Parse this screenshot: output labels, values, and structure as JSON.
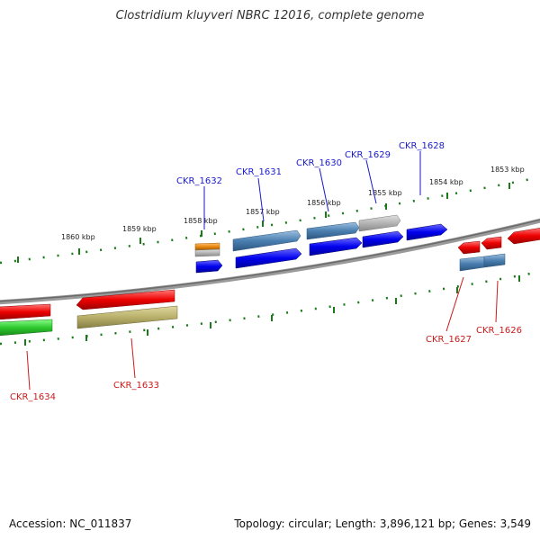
{
  "title": "Clostridium kluyveri NBRC 12016, complete genome",
  "footer": {
    "accession": "Accession: NC_011837",
    "summary": "Topology: circular; Length: 3,896,121 bp; Genes: 3,549"
  },
  "scale_labels": [
    "1853 kbp",
    "1854 kbp",
    "1855 kbp",
    "1856 kbp",
    "1857 kbp",
    "1858 kbp",
    "1859 kbp",
    "1860 kbp"
  ],
  "gene_labels_forward": [
    "CKR_1628",
    "CKR_1629",
    "CKR_1630",
    "CKR_1631",
    "CKR_1632"
  ],
  "gene_labels_reverse": [
    "CKR_1626",
    "CKR_1627",
    "CKR_1633",
    "CKR_1634"
  ],
  "colors": {
    "forward_cds": "#0000ee",
    "reverse_cds": "#ee0000",
    "steelblue_feature": "#4a7fb0",
    "grey_feature": "#b4b4b4",
    "olive_feature": "#b8b06a",
    "green_feature": "#2ec82e",
    "orange_feature": "#e88a10",
    "scale_ticks": "#1a7a1a",
    "backbone": "#7a7a7a"
  }
}
